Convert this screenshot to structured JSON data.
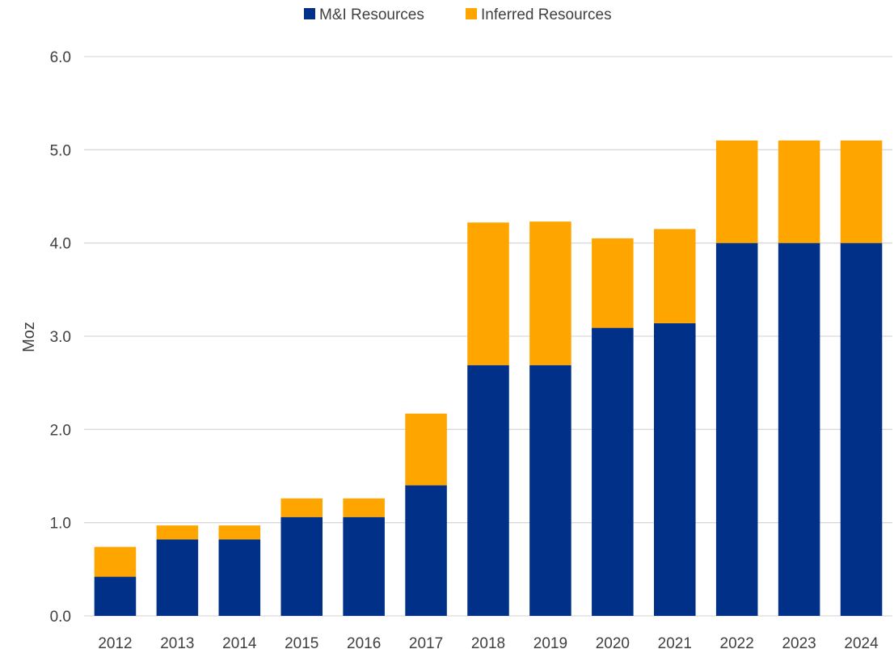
{
  "chart_data": {
    "type": "bar",
    "stacked": true,
    "categories": [
      "2012",
      "2013",
      "2014",
      "2015",
      "2016",
      "2017",
      "2018",
      "2019",
      "2020",
      "2021",
      "2022",
      "2023",
      "2024"
    ],
    "series": [
      {
        "name": "M&I Resources",
        "color": "#003087",
        "values": [
          0.42,
          0.82,
          0.82,
          1.06,
          1.06,
          1.4,
          2.69,
          2.69,
          3.09,
          3.14,
          4.0,
          4.0,
          4.0
        ]
      },
      {
        "name": "Inferred Resources",
        "color": "#FFA500",
        "values": [
          0.32,
          0.15,
          0.15,
          0.2,
          0.2,
          0.77,
          1.53,
          1.54,
          0.96,
          1.01,
          1.1,
          1.1,
          1.1
        ]
      }
    ],
    "ylabel": "Moz",
    "xlabel": "",
    "ylim": [
      0,
      6
    ],
    "yticks": [
      "0.0",
      "1.0",
      "2.0",
      "3.0",
      "4.0",
      "5.0",
      "6.0"
    ],
    "grid": true,
    "legend_position": "top-center"
  }
}
